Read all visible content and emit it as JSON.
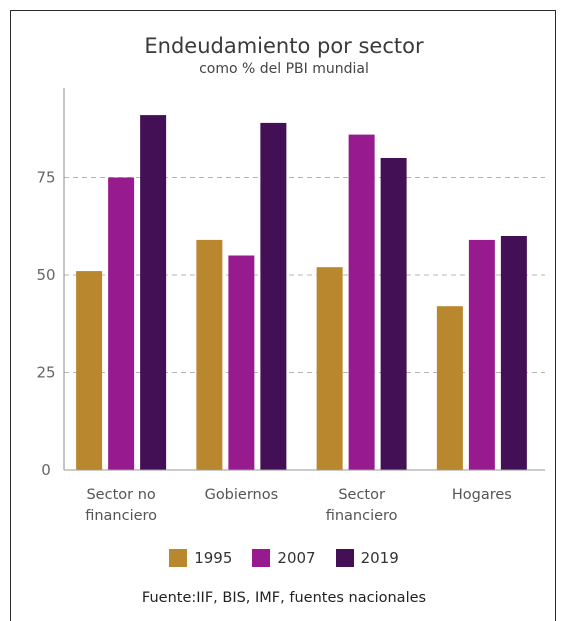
{
  "chart_data": {
    "type": "bar",
    "title": "Endeudamiento por sector",
    "subtitle": "como % del PBI mundial",
    "categories": [
      [
        "Sector no",
        "financiero"
      ],
      [
        "Gobiernos"
      ],
      [
        "Sector",
        "financiero"
      ],
      [
        "Hogares"
      ]
    ],
    "series": [
      {
        "name": "1995",
        "color": "#b8872e",
        "values": [
          51,
          59,
          52,
          42
        ]
      },
      {
        "name": "2007",
        "color": "#971b8f",
        "values": [
          75,
          55,
          86,
          59
        ]
      },
      {
        "name": "2019",
        "color": "#441055",
        "values": [
          91,
          89,
          80,
          60
        ]
      }
    ],
    "ylim": [
      0,
      100
    ],
    "yticks": [
      0,
      25,
      50,
      75
    ],
    "grid": true,
    "legend_position": "bottom",
    "source": "Fuente:IIF, BIS, IMF, fuentes nacionales"
  }
}
